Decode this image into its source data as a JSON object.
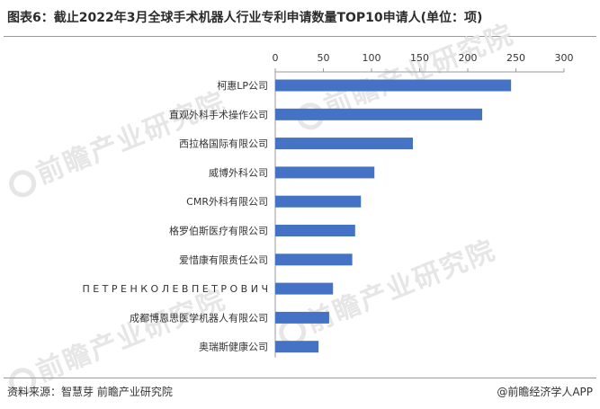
{
  "title": "图表6：截止2022年3月全球手术机器人行业专利申请数量TOP10申请人(单位：项)",
  "source": "资料来源：智慧芽 前瞻产业研究院",
  "credit": "@前瞻经济学人APP",
  "watermark": "前瞻产业研究院",
  "colors": {
    "bar": "#4472c4",
    "axis": "#999999",
    "text": "#333333"
  },
  "chart_data": {
    "type": "bar",
    "orientation": "horizontal",
    "categories": [
      "柯惠LP公司",
      "直观外科手术操作公司",
      "西拉格国际有限公司",
      "威博外科公司",
      "CMR外科有限公司",
      "格罗伯斯医疗有限公司",
      "爱惜康有限责任公司",
      "П Е Т Р Е Н К О   Л Е В   П Е Т Р О В И Ч",
      "成都博恩思医学机器人有限公司",
      "奥瑞斯健康公司"
    ],
    "values": [
      245,
      215,
      143,
      103,
      89,
      83,
      80,
      60,
      56,
      45
    ],
    "xlim": [
      0,
      300
    ],
    "xticks": [
      "0",
      "50",
      "100",
      "150",
      "200",
      "250",
      "300"
    ],
    "xaxis_position": "top",
    "grid": false,
    "legend": "none"
  }
}
